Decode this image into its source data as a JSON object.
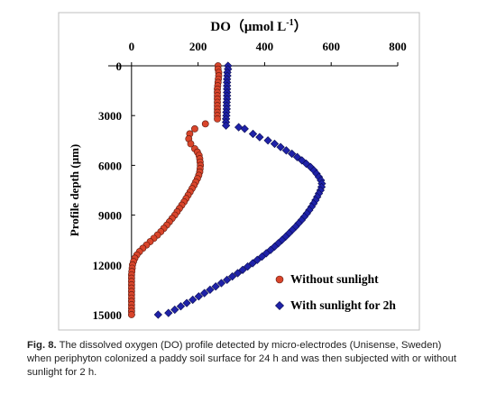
{
  "chart_data": {
    "type": "scatter",
    "title": "DO（μmol L",
    "title_superscript": "-1",
    "title_close": "）",
    "xlabel": "DO（μmol L-1）",
    "ylabel": "Profile depth (μm)",
    "x_axis_position": "top",
    "y_axis_inverted": true,
    "xlim": [
      -70,
      800
    ],
    "ylim": [
      0,
      15000
    ],
    "x_ticks": [
      "0",
      "200",
      "400",
      "600",
      "800"
    ],
    "x_tick_values": [
      0,
      200,
      400,
      600,
      800
    ],
    "y_ticks": [
      "0",
      "3000",
      "6000",
      "9000",
      "12000",
      "15000"
    ],
    "y_tick_values": [
      0,
      3000,
      6000,
      9000,
      12000,
      15000
    ],
    "grid": false,
    "legend_position": "bottom-right",
    "series": [
      {
        "name": "Without sunlight",
        "marker": "circle",
        "color": "#d9452b",
        "points": [
          [
            260,
            0
          ],
          [
            260,
            200
          ],
          [
            262,
            400
          ],
          [
            262,
            600
          ],
          [
            261,
            800
          ],
          [
            260,
            1000
          ],
          [
            259,
            1200
          ],
          [
            258,
            1400
          ],
          [
            258,
            1600
          ],
          [
            258,
            1800
          ],
          [
            258,
            2000
          ],
          [
            258,
            2200
          ],
          [
            258,
            2400
          ],
          [
            258,
            2600
          ],
          [
            258,
            2800
          ],
          [
            258,
            3000
          ],
          [
            258,
            3200
          ],
          [
            222,
            3500
          ],
          [
            190,
            3800
          ],
          [
            175,
            4100
          ],
          [
            172,
            4400
          ],
          [
            178,
            4700
          ],
          [
            190,
            5000
          ],
          [
            198,
            5200
          ],
          [
            203,
            5400
          ],
          [
            205,
            5600
          ],
          [
            206,
            5800
          ],
          [
            207,
            6000
          ],
          [
            206,
            6200
          ],
          [
            205,
            6400
          ],
          [
            202,
            6600
          ],
          [
            198,
            6800
          ],
          [
            193,
            7000
          ],
          [
            188,
            7200
          ],
          [
            182,
            7400
          ],
          [
            176,
            7600
          ],
          [
            170,
            7800
          ],
          [
            164,
            8000
          ],
          [
            158,
            8200
          ],
          [
            151,
            8400
          ],
          [
            144,
            8600
          ],
          [
            137,
            8800
          ],
          [
            130,
            9000
          ],
          [
            122,
            9200
          ],
          [
            114,
            9400
          ],
          [
            106,
            9600
          ],
          [
            97,
            9800
          ],
          [
            88,
            10000
          ],
          [
            78,
            10200
          ],
          [
            67,
            10400
          ],
          [
            56,
            10600
          ],
          [
            45,
            10800
          ],
          [
            34,
            11000
          ],
          [
            24,
            11200
          ],
          [
            16,
            11400
          ],
          [
            10,
            11600
          ],
          [
            6,
            11800
          ],
          [
            3,
            12000
          ],
          [
            2,
            12200
          ],
          [
            1,
            12400
          ],
          [
            0,
            12600
          ],
          [
            0,
            12800
          ],
          [
            0,
            13000
          ],
          [
            0,
            13200
          ],
          [
            0,
            13400
          ],
          [
            0,
            13600
          ],
          [
            0,
            13800
          ],
          [
            0,
            14000
          ],
          [
            0,
            14200
          ],
          [
            0,
            14400
          ],
          [
            0,
            14600
          ],
          [
            0,
            14800
          ],
          [
            0,
            15000
          ]
        ]
      },
      {
        "name": "With sunlight for 2h",
        "marker": "diamond",
        "color": "#1f22a8",
        "points": [
          [
            290,
            0
          ],
          [
            290,
            200
          ],
          [
            288,
            400
          ],
          [
            288,
            600
          ],
          [
            287,
            800
          ],
          [
            287,
            1000
          ],
          [
            287,
            1200
          ],
          [
            287,
            1400
          ],
          [
            287,
            1600
          ],
          [
            287,
            1800
          ],
          [
            287,
            2000
          ],
          [
            286,
            2200
          ],
          [
            286,
            2400
          ],
          [
            286,
            2600
          ],
          [
            285,
            2800
          ],
          [
            285,
            3000
          ],
          [
            284,
            3200
          ],
          [
            284,
            3400
          ],
          [
            284,
            3600
          ],
          [
            322,
            3700
          ],
          [
            340,
            3800
          ],
          [
            365,
            4100
          ],
          [
            385,
            4300
          ],
          [
            410,
            4500
          ],
          [
            430,
            4700
          ],
          [
            448,
            4900
          ],
          [
            465,
            5100
          ],
          [
            482,
            5300
          ],
          [
            498,
            5500
          ],
          [
            512,
            5700
          ],
          [
            525,
            5900
          ],
          [
            538,
            6100
          ],
          [
            548,
            6300
          ],
          [
            556,
            6500
          ],
          [
            563,
            6700
          ],
          [
            569,
            6900
          ],
          [
            572,
            7100
          ],
          [
            571,
            7300
          ],
          [
            568,
            7500
          ],
          [
            563,
            7700
          ],
          [
            558,
            7900
          ],
          [
            553,
            8100
          ],
          [
            547,
            8300
          ],
          [
            541,
            8500
          ],
          [
            534,
            8700
          ],
          [
            527,
            8900
          ],
          [
            519,
            9100
          ],
          [
            511,
            9300
          ],
          [
            502,
            9500
          ],
          [
            493,
            9700
          ],
          [
            483,
            9900
          ],
          [
            473,
            10100
          ],
          [
            463,
            10300
          ],
          [
            452,
            10500
          ],
          [
            441,
            10700
          ],
          [
            430,
            10900
          ],
          [
            418,
            11100
          ],
          [
            405,
            11300
          ],
          [
            392,
            11500
          ],
          [
            378,
            11700
          ],
          [
            364,
            11900
          ],
          [
            349,
            12100
          ],
          [
            334,
            12300
          ],
          [
            319,
            12500
          ],
          [
            303,
            12700
          ],
          [
            287,
            12900
          ],
          [
            270,
            13100
          ],
          [
            253,
            13300
          ],
          [
            236,
            13500
          ],
          [
            219,
            13700
          ],
          [
            202,
            13900
          ],
          [
            184,
            14100
          ],
          [
            166,
            14300
          ],
          [
            148,
            14500
          ],
          [
            130,
            14700
          ],
          [
            111,
            14900
          ],
          [
            80,
            15000
          ]
        ]
      }
    ]
  },
  "caption": {
    "label": "Fig. 8.",
    "text": " The dissolved oxygen (DO) profile detected by micro-electrodes (Unisense, Sweden) when periphyton colonized a paddy soil surface for 24 h and was then subjected with or without sunlight for 2 h."
  }
}
